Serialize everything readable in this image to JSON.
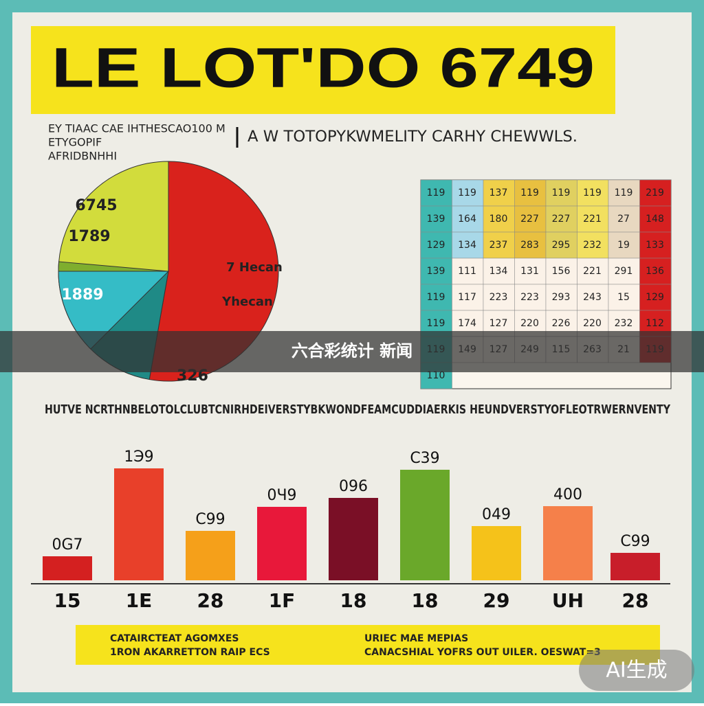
{
  "header": {
    "title": "LE LOT'DO 6749",
    "subtitle_left": [
      "EY TIAAC CAE IHTHESCAO100 M",
      "ETYGOPIF",
      "AFRIDBNHHI"
    ],
    "subtitle_right": "A W TOTOPYKWMELITY CARHY CHEWWLS."
  },
  "pie": {
    "labels": [
      "6745",
      "1789",
      "1889",
      "7 Hecan",
      "Yhecan",
      "326"
    ]
  },
  "table": {
    "rows": [
      [
        "119",
        "119",
        "137",
        "119",
        "119",
        "119",
        "119",
        "219"
      ],
      [
        "139",
        "164",
        "180",
        "227",
        "227",
        "221",
        "27",
        "148"
      ],
      [
        "129",
        "134",
        "237",
        "283",
        "295",
        "232",
        "19",
        "133"
      ],
      [
        "139",
        "111",
        "134",
        "131",
        "156",
        "221",
        "291",
        "136"
      ],
      [
        "119",
        "117",
        "223",
        "223",
        "293",
        "243",
        "15",
        "129"
      ],
      [
        "119",
        "174",
        "127",
        "220",
        "226",
        "220",
        "232",
        "112"
      ],
      [
        "119",
        "149",
        "127",
        "249",
        "115",
        "263",
        "21",
        "119"
      ],
      [
        "110"
      ]
    ]
  },
  "ticker": "HUTVE NCRTHNBELOTOLCLUBTCNIRHDEIVERSTYBKWONDFEAMCUDDIAERKIS HEUNDVERSTYOFLEOTRWERNVENTY",
  "bars": {
    "labels": [
      "0G7",
      "1Э9",
      "C99",
      "0Ч9",
      "096",
      "C39",
      "049",
      "400",
      "C99"
    ],
    "categories": [
      "15",
      "1E",
      "28",
      "1F",
      "18",
      "18",
      "29",
      "UH",
      "28"
    ]
  },
  "footer": {
    "left": [
      "CATAIRCTEAT AGOMXES",
      "1RON AKARRETTON RAIP ECS"
    ],
    "right": [
      "URIEC MAE MEPIAS",
      "CANACSHIAL YOFRS OUT UILER. OESWAT=3"
    ]
  },
  "overlay": "六合彩统计 新闻",
  "watermark": "AI生成"
}
